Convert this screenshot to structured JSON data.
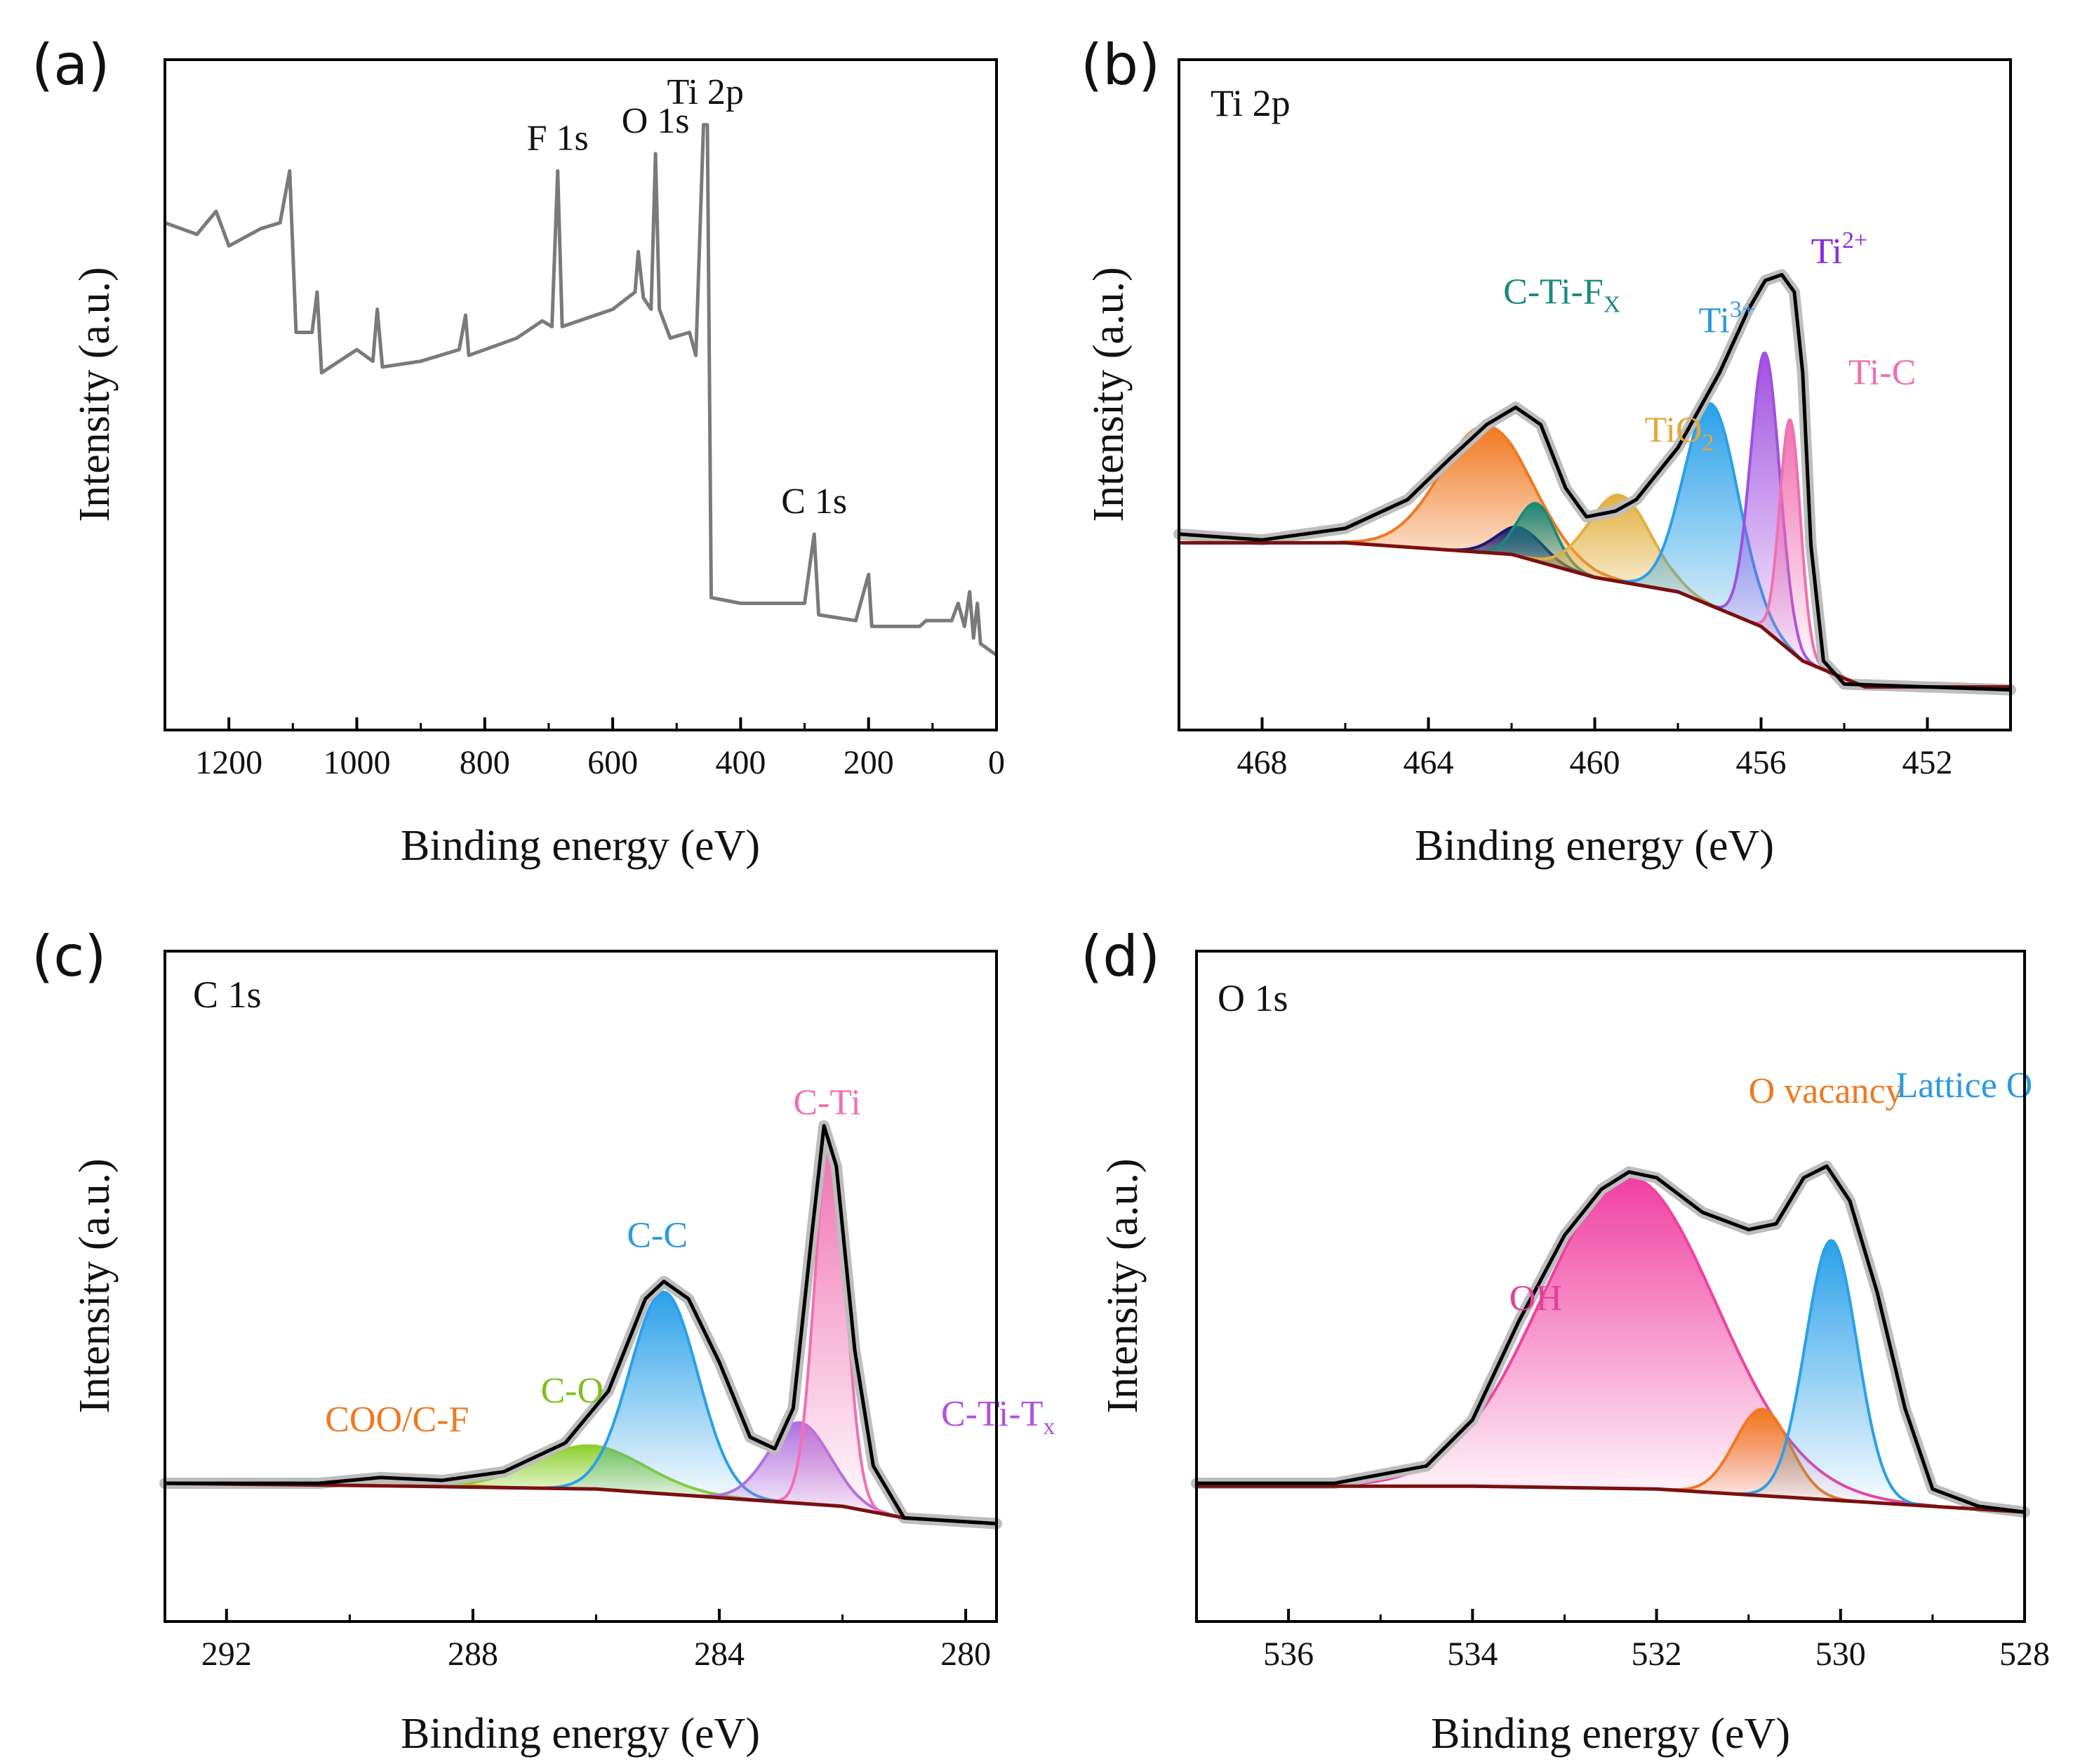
{
  "colors": {
    "survey": "#7a7a7a",
    "raw": "#bdbdbd",
    "envelope": "#000000",
    "background": "#7a1010",
    "orange": "#f07820",
    "navy": "#1a1a70",
    "teal": "#1a8a7a",
    "gold": "#e2b040",
    "blue": "#2aa0e8",
    "purple": "#a050e0",
    "pink": "#f070b0",
    "green": "#8ed030",
    "magenta": "#f040a0",
    "violet": "#b070e0",
    "teal_text": "#1a8a7a",
    "gold_text": "#e0a838",
    "blue_text": "#2a9ae0",
    "purple_text": "#8a2be2",
    "pink_text": "#f070b0",
    "orange_text": "#f07820",
    "green_text": "#7ec020",
    "magenta_text": "#e0409a",
    "violet_text": "#b050e0"
  },
  "chart_data": [
    {
      "panel": "(a)",
      "type": "line",
      "xlabel": "Binding energy (eV)",
      "ylabel": "Intensity (a.u.)",
      "xlim": [
        1300,
        0
      ],
      "xticks": [
        "1200",
        "1000",
        "800",
        "600",
        "400",
        "200",
        "0"
      ],
      "survey_points": [
        [
          1300,
          0.81
        ],
        [
          1250,
          0.79
        ],
        [
          1220,
          0.83
        ],
        [
          1200,
          0.77
        ],
        [
          1150,
          0.8
        ],
        [
          1120,
          0.81
        ],
        [
          1105,
          0.9
        ],
        [
          1095,
          0.62
        ],
        [
          1070,
          0.62
        ],
        [
          1062,
          0.69
        ],
        [
          1055,
          0.55
        ],
        [
          1000,
          0.59
        ],
        [
          975,
          0.57
        ],
        [
          968,
          0.66
        ],
        [
          960,
          0.56
        ],
        [
          900,
          0.57
        ],
        [
          840,
          0.59
        ],
        [
          830,
          0.65
        ],
        [
          825,
          0.58
        ],
        [
          750,
          0.61
        ],
        [
          710,
          0.64
        ],
        [
          695,
          0.63
        ],
        [
          686,
          0.9
        ],
        [
          679,
          0.63
        ],
        [
          600,
          0.66
        ],
        [
          565,
          0.69
        ],
        [
          560,
          0.76
        ],
        [
          552,
          0.68
        ],
        [
          540,
          0.66
        ],
        [
          533,
          0.93
        ],
        [
          527,
          0.66
        ],
        [
          510,
          0.61
        ],
        [
          480,
          0.62
        ],
        [
          470,
          0.58
        ],
        [
          458,
          0.98
        ],
        [
          452,
          0.98
        ],
        [
          446,
          0.16
        ],
        [
          400,
          0.15
        ],
        [
          300,
          0.15
        ],
        [
          285,
          0.27
        ],
        [
          278,
          0.13
        ],
        [
          220,
          0.12
        ],
        [
          200,
          0.2
        ],
        [
          195,
          0.11
        ],
        [
          120,
          0.11
        ],
        [
          110,
          0.12
        ],
        [
          70,
          0.12
        ],
        [
          60,
          0.15
        ],
        [
          50,
          0.11
        ],
        [
          42,
          0.17
        ],
        [
          36,
          0.09
        ],
        [
          30,
          0.15
        ],
        [
          25,
          0.08
        ],
        [
          0,
          0.06
        ]
      ],
      "peak_labels": [
        {
          "text": "F 1s",
          "x": 686
        },
        {
          "text": "O 1s",
          "x": 533
        },
        {
          "text": "Ti 2p",
          "x": 455
        },
        {
          "text": "C 1s",
          "x": 285
        }
      ]
    },
    {
      "panel": "(b)",
      "type": "area",
      "title": "Ti 2p",
      "xlabel": "Binding energy (eV)",
      "ylabel": "Intensity (a.u.)",
      "xlim": [
        470,
        450
      ],
      "xticks": [
        "468",
        "464",
        "460",
        "456",
        "452"
      ],
      "background_line": [
        [
          470,
          0.255
        ],
        [
          466,
          0.255
        ],
        [
          462,
          0.235
        ],
        [
          460,
          0.195
        ],
        [
          458,
          0.17
        ],
        [
          456,
          0.11
        ],
        [
          455,
          0.05
        ],
        [
          453.5,
          0.005
        ],
        [
          450,
          0.005
        ]
      ],
      "envelope_line": [
        [
          470,
          0.27
        ],
        [
          468,
          0.26
        ],
        [
          466,
          0.28
        ],
        [
          464.5,
          0.33
        ],
        [
          463.5,
          0.4
        ],
        [
          462.6,
          0.46
        ],
        [
          461.9,
          0.49
        ],
        [
          461.3,
          0.46
        ],
        [
          460.7,
          0.35
        ],
        [
          460.2,
          0.3
        ],
        [
          459.5,
          0.31
        ],
        [
          459,
          0.33
        ],
        [
          458,
          0.42
        ],
        [
          457,
          0.55
        ],
        [
          456.3,
          0.66
        ],
        [
          455.9,
          0.71
        ],
        [
          455.5,
          0.72
        ],
        [
          455.2,
          0.69
        ],
        [
          455.0,
          0.55
        ],
        [
          454.8,
          0.25
        ],
        [
          454.5,
          0.05
        ],
        [
          454,
          0.01
        ],
        [
          450,
          0.0
        ]
      ],
      "components": [
        {
          "name": "orange",
          "center": 462.6,
          "height": 0.22,
          "width": 1.1
        },
        {
          "name": "navy",
          "center": 461.8,
          "height": 0.05,
          "width": 0.55
        },
        {
          "name": "teal",
          "center": 461.4,
          "height": 0.1,
          "width": 0.45
        },
        {
          "name": "gold",
          "center": 459.4,
          "height": 0.15,
          "width": 0.75
        },
        {
          "name": "blue",
          "center": 457.2,
          "height": 0.35,
          "width": 0.65
        },
        {
          "name": "purple",
          "center": 455.9,
          "height": 0.48,
          "width": 0.35
        },
        {
          "name": "pink",
          "center": 455.3,
          "height": 0.4,
          "width": 0.25
        }
      ],
      "labels": [
        {
          "text": "C-Ti-F",
          "sub": "X",
          "sup": "",
          "color": "teal_text",
          "x": 462.2,
          "y": 0.67
        },
        {
          "text": "TiO",
          "sub": "2",
          "sup": "",
          "color": "gold_text",
          "x": 458.8,
          "y": 0.43
        },
        {
          "text": "Ti",
          "sub": "",
          "sup": "3+",
          "color": "blue_text",
          "x": 457.5,
          "y": 0.62
        },
        {
          "text": "Ti",
          "sub": "",
          "sup": "2+",
          "color": "purple_text",
          "x": 454.8,
          "y": 0.74
        },
        {
          "text": "Ti-C",
          "sub": "",
          "sup": "",
          "color": "pink_text",
          "x": 453.9,
          "y": 0.53
        }
      ]
    },
    {
      "panel": "(c)",
      "type": "area",
      "title": "C 1s",
      "xlabel": "Binding energy (eV)",
      "ylabel": "Intensity (a.u.)",
      "xlim": [
        293,
        279.5
      ],
      "xticks": [
        "292",
        "288",
        "284",
        "280"
      ],
      "background_line": [
        [
          293,
          0.17
        ],
        [
          289,
          0.165
        ],
        [
          286,
          0.16
        ],
        [
          284,
          0.145
        ],
        [
          282,
          0.13
        ],
        [
          281,
          0.11
        ],
        [
          279.5,
          0.1
        ]
      ],
      "envelope_line": [
        [
          293,
          0.17
        ],
        [
          290.5,
          0.17
        ],
        [
          289.5,
          0.18
        ],
        [
          288.5,
          0.175
        ],
        [
          287.5,
          0.19
        ],
        [
          286.5,
          0.24
        ],
        [
          285.8,
          0.33
        ],
        [
          285.2,
          0.49
        ],
        [
          284.9,
          0.52
        ],
        [
          284.5,
          0.49
        ],
        [
          284.0,
          0.38
        ],
        [
          283.5,
          0.25
        ],
        [
          283.1,
          0.23
        ],
        [
          282.8,
          0.3
        ],
        [
          282.5,
          0.6
        ],
        [
          282.3,
          0.79
        ],
        [
          282.1,
          0.72
        ],
        [
          281.8,
          0.4
        ],
        [
          281.5,
          0.2
        ],
        [
          281.0,
          0.11
        ],
        [
          279.5,
          0.1
        ]
      ],
      "components": [
        {
          "name": "orange",
          "center": 289.5,
          "height": 0.015,
          "width": 0.8
        },
        {
          "name": "green",
          "center": 286.1,
          "height": 0.075,
          "width": 0.9
        },
        {
          "name": "blue",
          "center": 284.9,
          "height": 0.35,
          "width": 0.55
        },
        {
          "name": "violet",
          "center": 282.7,
          "height": 0.14,
          "width": 0.5
        },
        {
          "name": "pink",
          "center": 282.2,
          "height": 0.64,
          "width": 0.25
        }
      ],
      "labels": [
        {
          "text": "COO/C-F",
          "sub": "",
          "sup": "",
          "color": "orange_text",
          "x": 290.4,
          "y": 0.26
        },
        {
          "text": "C-O",
          "sub": "",
          "sup": "",
          "color": "green_text",
          "x": 286.9,
          "y": 0.31
        },
        {
          "text": "C-C",
          "sub": "",
          "sup": "",
          "color": "blue_text",
          "x": 285.5,
          "y": 0.58
        },
        {
          "text": "C-Ti",
          "sub": "",
          "sup": "",
          "color": "pink_text",
          "x": 282.8,
          "y": 0.81
        },
        {
          "text": "C-Ti-T",
          "sub": "x",
          "sup": "",
          "color": "violet_text",
          "x": 280.4,
          "y": 0.27
        }
      ]
    },
    {
      "panel": "(d)",
      "type": "area",
      "title": "O 1s",
      "xlabel": "Binding energy (eV)",
      "ylabel": "Intensity (a.u.)",
      "xlim": [
        537,
        528
      ],
      "xticks": [
        "536",
        "534",
        "532",
        "530",
        "528"
      ],
      "background_line": [
        [
          537,
          0.165
        ],
        [
          534,
          0.165
        ],
        [
          532,
          0.16
        ],
        [
          530,
          0.14
        ],
        [
          528,
          0.12
        ]
      ],
      "envelope_line": [
        [
          537,
          0.17
        ],
        [
          535.5,
          0.17
        ],
        [
          534.5,
          0.2
        ],
        [
          534,
          0.28
        ],
        [
          533.5,
          0.45
        ],
        [
          533,
          0.6
        ],
        [
          532.6,
          0.68
        ],
        [
          532.3,
          0.71
        ],
        [
          532,
          0.7
        ],
        [
          531.5,
          0.64
        ],
        [
          531,
          0.61
        ],
        [
          530.7,
          0.62
        ],
        [
          530.4,
          0.7
        ],
        [
          530.15,
          0.72
        ],
        [
          529.9,
          0.66
        ],
        [
          529.6,
          0.5
        ],
        [
          529.3,
          0.3
        ],
        [
          529,
          0.16
        ],
        [
          528.5,
          0.13
        ],
        [
          528,
          0.12
        ]
      ],
      "components": [
        {
          "name": "magenta",
          "center": 532.3,
          "height": 0.54,
          "width": 0.95
        },
        {
          "name": "orange",
          "center": 530.85,
          "height": 0.15,
          "width": 0.3
        },
        {
          "name": "blue",
          "center": 530.1,
          "height": 0.45,
          "width": 0.28
        }
      ],
      "labels": [
        {
          "text": "OH",
          "sub": "",
          "sup": "",
          "color": "magenta_text",
          "x": 533.6,
          "y": 0.47
        },
        {
          "text": "O vacancy",
          "sub": "",
          "sup": "",
          "color": "orange_text",
          "x": 531.0,
          "y": 0.83
        },
        {
          "text": "Lattice O",
          "sub": "",
          "sup": "",
          "color": "blue_text",
          "x": 529.4,
          "y": 0.84
        }
      ]
    }
  ]
}
